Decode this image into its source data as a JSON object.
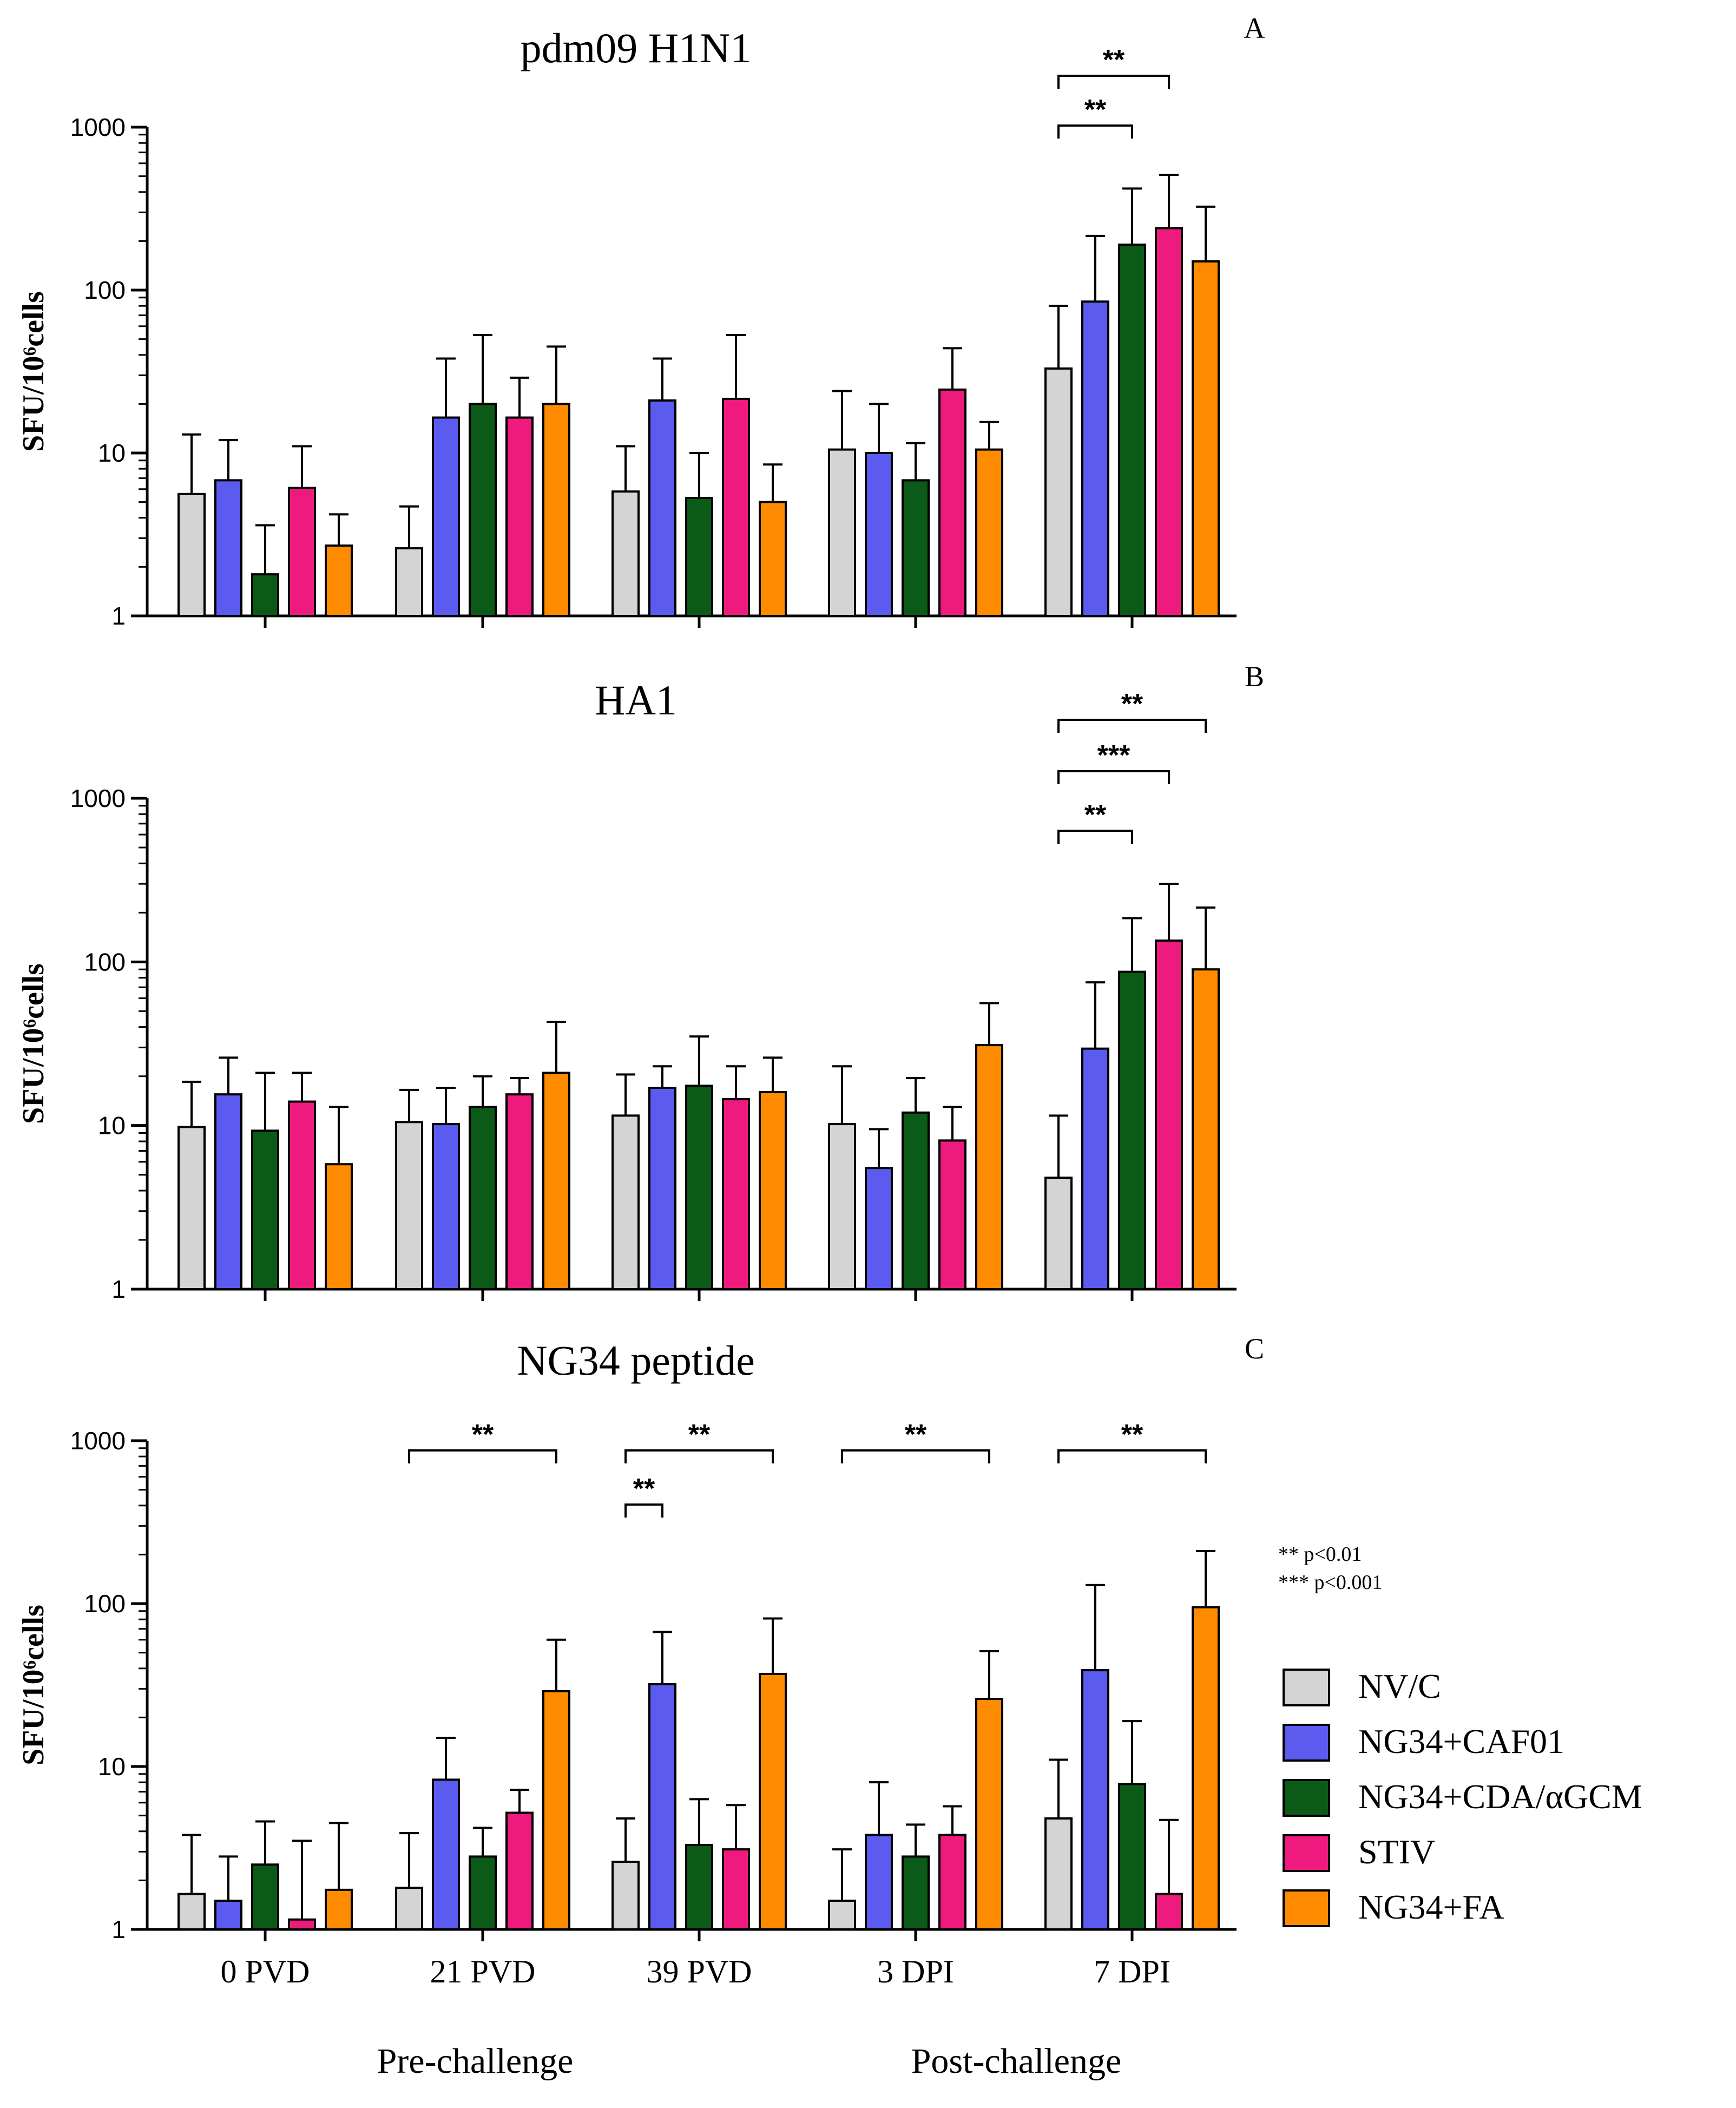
{
  "figure": {
    "group_labels": {
      "pre": "Pre-challenge",
      "post": "Post-challenge"
    },
    "significance_note": [
      "** p<0.01",
      "*** p<0.001"
    ]
  },
  "colors": {
    "NV/C": "#d4d4d4",
    "NG34+CAF01": "#5b5bf0",
    "NG34+CDA/αGCM": "#0b5a17",
    "STIV": "#ee1a7e",
    "NG34+FA": "#ff8c00"
  },
  "chart_data": [
    {
      "type": "bar",
      "panel": "A",
      "title": "pdm09 H1N1",
      "ylabel": "SFU/10⁶cells",
      "yscale": "log",
      "ylim": [
        1,
        1000
      ],
      "yticks": [
        "1",
        "10",
        "100",
        "1000"
      ],
      "categories": [
        "0 PVD",
        "21 PVD",
        "39 PVD",
        "3 DPI",
        "7 DPI"
      ],
      "series": [
        {
          "name": "NV/C",
          "values": [
            5.6,
            2.6,
            5.8,
            10.5,
            33
          ],
          "errors": [
            13,
            4.7,
            11,
            24,
            80
          ]
        },
        {
          "name": "NG34+CAF01",
          "values": [
            6.8,
            16.5,
            21,
            10,
            85
          ],
          "errors": [
            12,
            38,
            38,
            20,
            215
          ]
        },
        {
          "name": "NG34+CDA/αGCM",
          "values": [
            1.8,
            20,
            5.3,
            6.8,
            190
          ],
          "errors": [
            3.6,
            53,
            10,
            11.5,
            420
          ]
        },
        {
          "name": "STIV",
          "values": [
            6.1,
            16.5,
            21.5,
            24.5,
            240
          ],
          "errors": [
            11,
            29,
            53,
            44,
            510
          ]
        },
        {
          "name": "NG34+FA",
          "values": [
            2.7,
            20,
            5.0,
            10.5,
            150
          ],
          "errors": [
            4.2,
            45,
            8.5,
            15.5,
            325
          ]
        }
      ],
      "brackets": [
        {
          "from": "NV/C",
          "to": "STIV",
          "category": "7 DPI",
          "label": "**"
        },
        {
          "from": "NV/C",
          "to": "NG34+CDA/αGCM",
          "category": "7 DPI",
          "label": "**"
        }
      ]
    },
    {
      "type": "bar",
      "panel": "B",
      "title": "HA1",
      "ylabel": "SFU/10⁶cells",
      "yscale": "log",
      "ylim": [
        1,
        1000
      ],
      "yticks": [
        "1",
        "10",
        "100",
        "1000"
      ],
      "categories": [
        "0 PVD",
        "21 PVD",
        "39 PVD",
        "3 DPI",
        "7 DPI"
      ],
      "series": [
        {
          "name": "NV/C",
          "values": [
            9.8,
            10.5,
            11.5,
            10.2,
            4.8
          ],
          "errors": [
            18.5,
            16.5,
            20.5,
            23,
            11.5
          ]
        },
        {
          "name": "NG34+CAF01",
          "values": [
            15.5,
            10.2,
            17,
            5.5,
            29.5
          ],
          "errors": [
            26,
            17,
            23,
            9.5,
            75
          ]
        },
        {
          "name": "NG34+CDA/αGCM",
          "values": [
            9.3,
            13,
            17.5,
            12,
            87
          ],
          "errors": [
            21,
            20,
            35,
            19.5,
            185
          ]
        },
        {
          "name": "STIV",
          "values": [
            14,
            15.5,
            14.5,
            8.1,
            135
          ],
          "errors": [
            21,
            19.5,
            23,
            13,
            300
          ]
        },
        {
          "name": "NG34+FA",
          "values": [
            5.8,
            21,
            16,
            31,
            90
          ],
          "errors": [
            13,
            43,
            26,
            56,
            215
          ]
        }
      ],
      "brackets": [
        {
          "from": "NV/C",
          "to": "NG34+FA",
          "category": "7 DPI",
          "label": "**"
        },
        {
          "from": "NV/C",
          "to": "STIV",
          "category": "7 DPI",
          "label": "***"
        },
        {
          "from": "NV/C",
          "to": "NG34+CDA/αGCM",
          "category": "7 DPI",
          "label": "**"
        }
      ]
    },
    {
      "type": "bar",
      "panel": "C",
      "title": "NG34 peptide",
      "ylabel": "SFU/10⁶cells",
      "yscale": "log",
      "ylim": [
        1,
        1000
      ],
      "yticks": [
        "1",
        "10",
        "100",
        "1000"
      ],
      "categories": [
        "0 PVD",
        "21 PVD",
        "39 PVD",
        "3 DPI",
        "7 DPI"
      ],
      "series": [
        {
          "name": "NV/C",
          "values": [
            1.65,
            1.8,
            2.6,
            1.5,
            4.8
          ],
          "errors": [
            3.8,
            3.9,
            4.8,
            3.1,
            11
          ]
        },
        {
          "name": "NG34+CAF01",
          "values": [
            1.5,
            8.3,
            32,
            3.8,
            39
          ],
          "errors": [
            2.8,
            15,
            67,
            8,
            130
          ]
        },
        {
          "name": "NG34+CDA/αGCM",
          "values": [
            2.5,
            2.8,
            3.3,
            2.8,
            7.8
          ],
          "errors": [
            4.6,
            4.2,
            6.3,
            4.4,
            19
          ]
        },
        {
          "name": "STIV",
          "values": [
            1.15,
            5.2,
            3.1,
            3.8,
            1.65
          ],
          "errors": [
            3.5,
            7.2,
            5.8,
            5.7,
            4.7
          ]
        },
        {
          "name": "NG34+FA",
          "values": [
            1.75,
            29,
            37,
            26,
            95
          ],
          "errors": [
            4.5,
            60,
            81,
            51,
            210
          ]
        }
      ],
      "brackets": [
        {
          "from": "NV/C",
          "to": "NG34+FA",
          "category": "21 PVD",
          "label": "**"
        },
        {
          "from": "NV/C",
          "to": "NG34+FA",
          "category": "39 PVD",
          "label": "**"
        },
        {
          "from": "NV/C",
          "to": "NG34+CAF01",
          "category": "39 PVD",
          "label": "**"
        },
        {
          "from": "NV/C",
          "to": "NG34+FA",
          "category": "3 DPI",
          "label": "**"
        },
        {
          "from": "NV/C",
          "to": "NG34+FA",
          "category": "7 DPI",
          "label": "**"
        }
      ]
    }
  ]
}
